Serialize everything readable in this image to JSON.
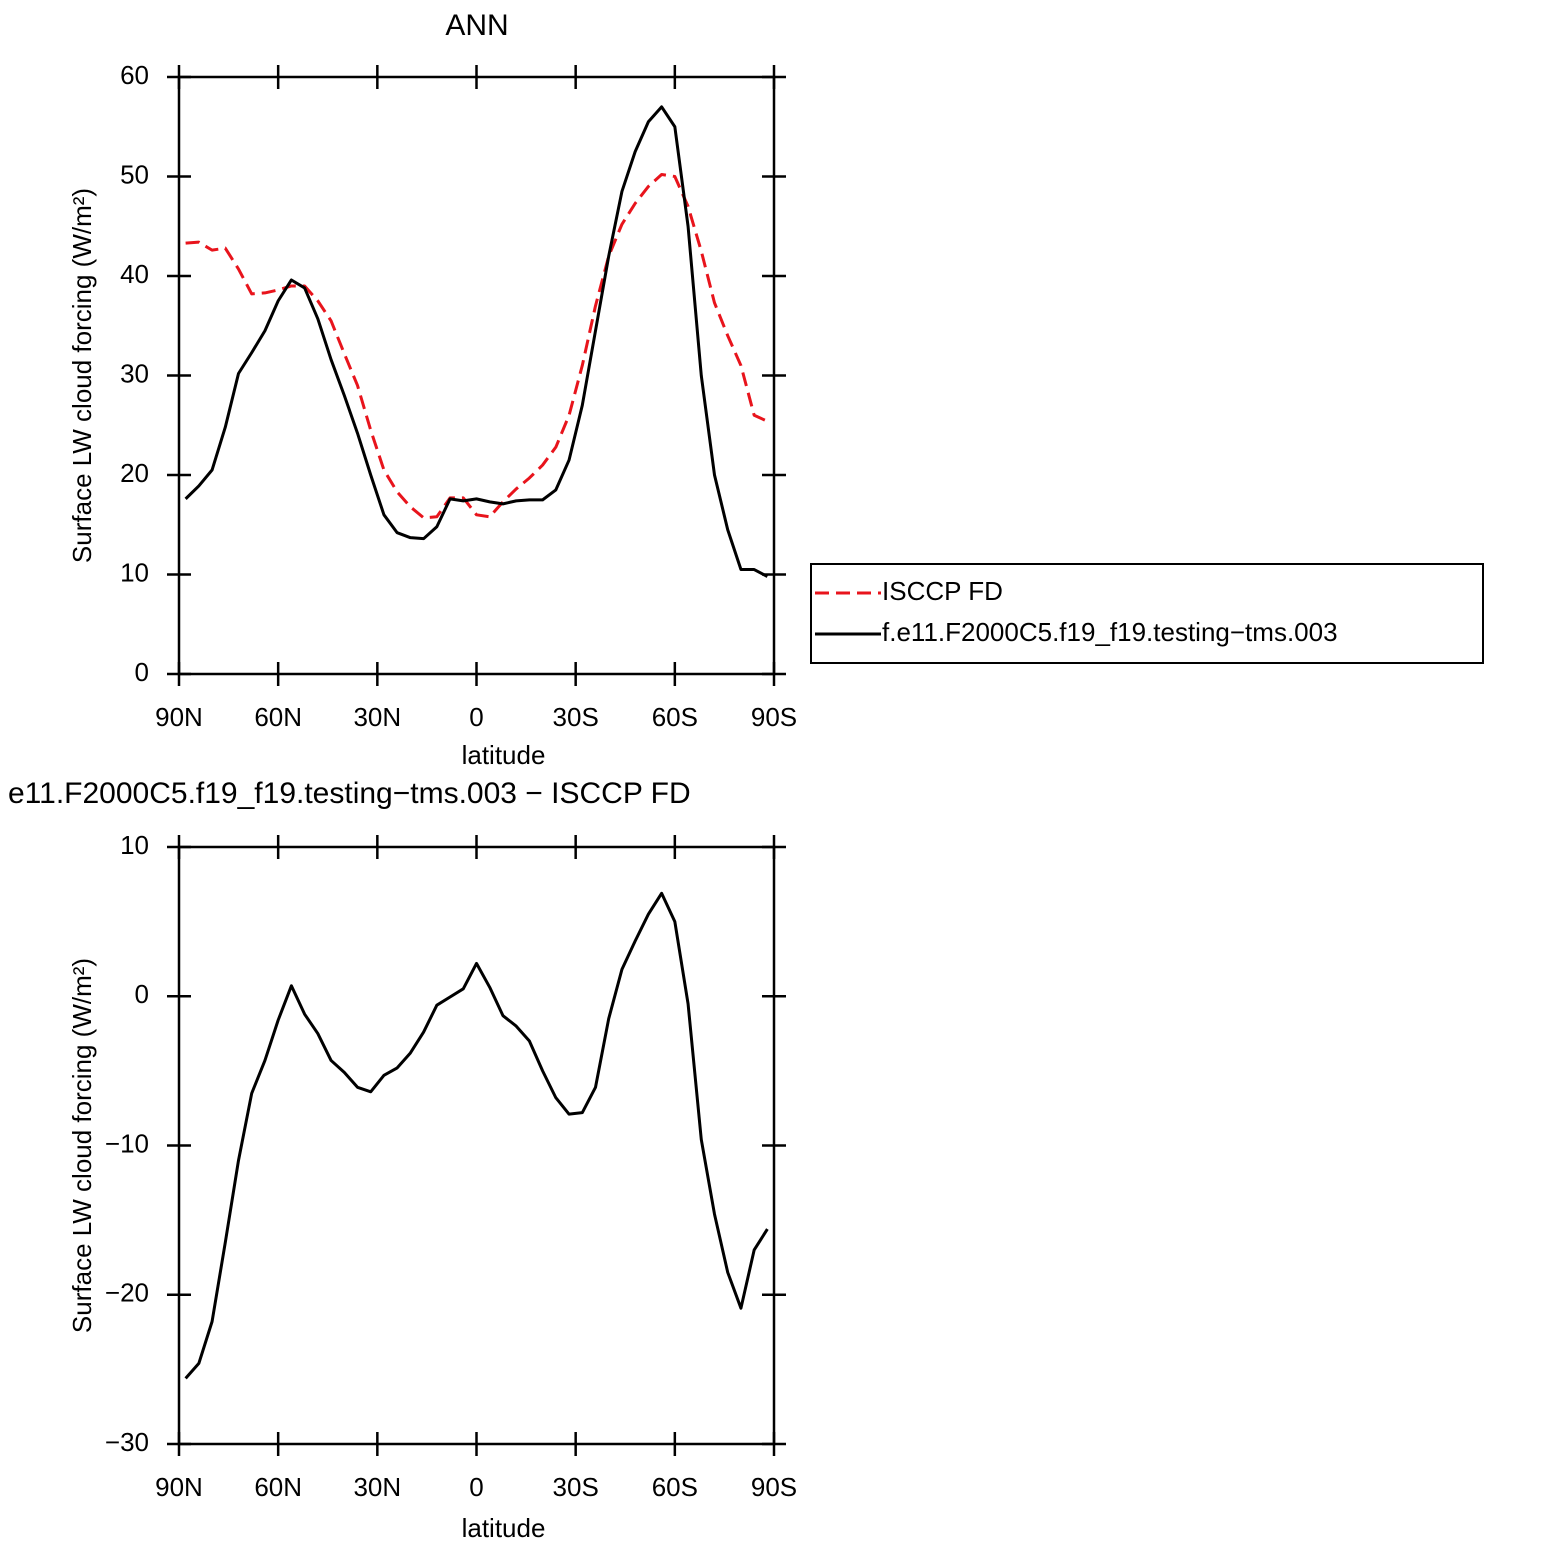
{
  "chart_data": [
    {
      "type": "line",
      "title": "ANN",
      "xlabel": "latitude",
      "ylabel": "Surface LW cloud forcing (W/m²)",
      "x": [
        88,
        84,
        80,
        76,
        72,
        68,
        64,
        60,
        56,
        52,
        48,
        44,
        40,
        36,
        32,
        28,
        24,
        20,
        16,
        12,
        8,
        4,
        0,
        -4,
        -8,
        -12,
        -16,
        -20,
        -24,
        -28,
        -32,
        -36,
        -40,
        -44,
        -48,
        -52,
        -56,
        -60,
        -64,
        -68,
        -72,
        -76,
        -80,
        -84,
        -88
      ],
      "series": [
        {
          "name": "ISCCP FD",
          "color": "#e8141c",
          "dash": true,
          "values": [
            43.3,
            43.4,
            42.6,
            42.8,
            40.7,
            38.2,
            38.3,
            38.6,
            39.0,
            39.0,
            37.5,
            35.5,
            32.2,
            29,
            24.5,
            20.5,
            18.3,
            16.8,
            15.7,
            15.8,
            17.7,
            17.7,
            16,
            15.8,
            17.3,
            18.6,
            19.7,
            21,
            22.8,
            26,
            31,
            37,
            42,
            45.2,
            47.3,
            49,
            50.2,
            50,
            47,
            42.5,
            37.3,
            34,
            31,
            26,
            25.4
          ]
        },
        {
          "name": "f.e11.F2000C5.f19_f19.testing−tms.003",
          "color": "#000000",
          "dash": false,
          "values": [
            17.6,
            18.9,
            20.5,
            24.8,
            30.2,
            32.3,
            34.5,
            37.5,
            39.6,
            38.8,
            35.7,
            31.6,
            28,
            24.2,
            20,
            16,
            14.2,
            13.7,
            13.6,
            14.8,
            17.6,
            17.4,
            17.6,
            17.3,
            17.1,
            17.4,
            17.5,
            17.5,
            18.5,
            21.5,
            27,
            34.5,
            42,
            48.5,
            52.5,
            55.5,
            57,
            55,
            45,
            30,
            20,
            14.5,
            10.5,
            10.5,
            9.8
          ]
        }
      ],
      "xlim": [
        90,
        -90
      ],
      "xticks": [
        {
          "value": 90,
          "label": "90N"
        },
        {
          "value": 60,
          "label": "60N"
        },
        {
          "value": 30,
          "label": "30N"
        },
        0,
        {
          "value": -30,
          "label": "30S"
        },
        {
          "value": -60,
          "label": "60S"
        },
        {
          "value": -90,
          "label": "90S"
        }
      ],
      "ylim": [
        0,
        60
      ],
      "yticks": [
        0,
        10,
        20,
        30,
        40,
        50,
        60
      ],
      "legend": "right"
    },
    {
      "type": "line",
      "title": "e11.F2000C5.f19_f19.testing−tms.003 − ISCCP FD",
      "xlabel": "latitude",
      "ylabel": "Surface LW cloud forcing (W/m²)",
      "x": [
        88,
        84,
        80,
        76,
        72,
        68,
        64,
        60,
        56,
        52,
        48,
        44,
        40,
        36,
        32,
        28,
        24,
        20,
        16,
        12,
        8,
        4,
        0,
        -4,
        -8,
        -12,
        -16,
        -20,
        -24,
        -28,
        -32,
        -36,
        -40,
        -44,
        -48,
        -52,
        -56,
        -60,
        -64,
        -68,
        -72,
        -76,
        -80,
        -84,
        -88
      ],
      "values": [
        -25.6,
        -24.6,
        -21.8,
        -16.5,
        -11,
        -6.5,
        -4.3,
        -1.6,
        0.7,
        -1.2,
        -2.5,
        -4.3,
        -5.1,
        -6.1,
        -6.4,
        -5.3,
        -4.8,
        -3.8,
        -2.4,
        -0.6,
        -0.05,
        0.5,
        2.2,
        0.6,
        -1.3,
        -2.0,
        -3.0,
        -5.0,
        -6.8,
        -7.9,
        -7.8,
        -6.1,
        -1.5,
        1.8,
        3.7,
        5.5,
        6.9,
        5,
        -0.5,
        -9.6,
        -14.6,
        -18.5,
        -20.9,
        -17,
        -15.6
      ],
      "color": "#000000",
      "xlim": [
        90,
        -90
      ],
      "xticks": [
        {
          "value": 90,
          "label": "90N"
        },
        {
          "value": 60,
          "label": "60N"
        },
        {
          "value": 30,
          "label": "30N"
        },
        0,
        {
          "value": -30,
          "label": "30S"
        },
        {
          "value": -60,
          "label": "60S"
        },
        {
          "value": -90,
          "label": "90S"
        }
      ],
      "ylim": [
        -30,
        10
      ],
      "yticks": [
        {
          "value": -30,
          "label": "−30"
        },
        {
          "value": -20,
          "label": "−20"
        },
        {
          "value": -10,
          "label": "−10"
        },
        0,
        10
      ]
    }
  ]
}
